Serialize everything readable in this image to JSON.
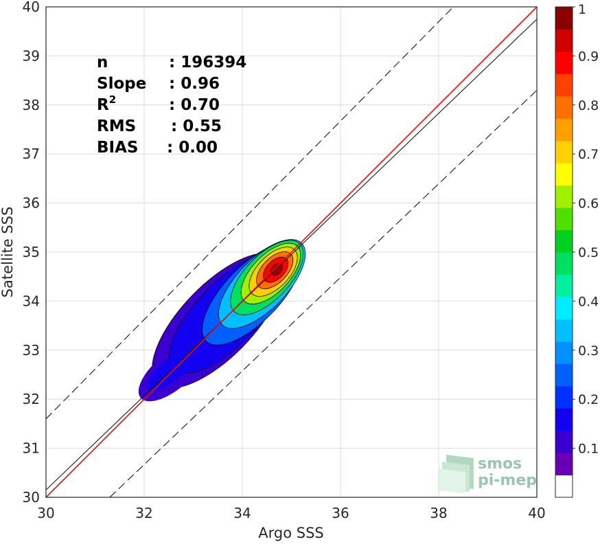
{
  "chart_data": {
    "type": "contour-density",
    "xlabel": "Argo SSS",
    "ylabel": "Satellite SSS",
    "xlim": [
      30,
      40
    ],
    "ylim": [
      30,
      40
    ],
    "xticks": [
      30,
      32,
      34,
      36,
      38,
      40
    ],
    "yticks": [
      30,
      31,
      32,
      33,
      34,
      35,
      36,
      37,
      38,
      39,
      40
    ],
    "grid": true,
    "stats": [
      {
        "key": "n",
        "value": ": 196394"
      },
      {
        "key": "Slope",
        "value": ": 0.96"
      },
      {
        "key": "R",
        "sup": "2",
        "value": ": 0.70"
      },
      {
        "key": "RMS",
        "value": ": 0.55"
      },
      {
        "key": "BIAS",
        "value": ": 0.00"
      }
    ],
    "lines": {
      "identity": {
        "x": [
          30,
          40
        ],
        "y": [
          30,
          40
        ],
        "color": "#ff0000"
      },
      "fit": {
        "x": [
          30,
          40
        ],
        "y": [
          30.15,
          39.75
        ],
        "color": "#000000"
      },
      "upper_bound": {
        "x": [
          30,
          38.3
        ],
        "y": [
          31.6,
          40
        ],
        "color": "#000000",
        "dash": true
      },
      "lower_bound": {
        "x": [
          31.3,
          40
        ],
        "y": [
          30,
          38.3
        ],
        "color": "#000000",
        "dash": true
      }
    },
    "density_peak": {
      "x": 34.7,
      "y": 34.65
    },
    "colorbar": {
      "min": 0,
      "max": 1,
      "ticks": [
        0.1,
        0.2,
        0.3,
        0.4,
        0.5,
        0.6,
        0.7,
        0.8,
        0.9,
        1
      ],
      "tick_labels": [
        "0.1",
        "0.2",
        "0.3",
        "0.4",
        "0.5",
        "0.6",
        "0.7",
        "0.8",
        "0.9",
        "1"
      ],
      "colors": [
        "#ffffff",
        "#6a00b5",
        "#3a00d0",
        "#1400f0",
        "#0030ff",
        "#0060ff",
        "#0090ff",
        "#00c0ff",
        "#00ecff",
        "#00f0a0",
        "#00e060",
        "#00d020",
        "#50e000",
        "#a0f000",
        "#ffff00",
        "#ffd000",
        "#ffa000",
        "#ff7000",
        "#ff4000",
        "#ff0000",
        "#d00000",
        "#8b0000"
      ]
    },
    "contour_levels": [
      {
        "level": 0.05,
        "color": "#3a00d0",
        "cx": 33.5,
        "cy": 33.6,
        "rx": 1.25,
        "ry": 0.52
      },
      {
        "level": 0.15,
        "color": "#1400f0",
        "cx": 33.7,
        "cy": 33.75,
        "rx": 1.12,
        "ry": 0.45
      },
      {
        "level": 0.25,
        "color": "#0060ff",
        "cx": 34.2,
        "cy": 34.15,
        "rx": 0.95,
        "ry": 0.4
      },
      {
        "level": 0.35,
        "color": "#00c0ff",
        "cx": 34.4,
        "cy": 34.35,
        "rx": 0.82,
        "ry": 0.36
      },
      {
        "level": 0.45,
        "color": "#00e060",
        "cx": 34.5,
        "cy": 34.48,
        "rx": 0.68,
        "ry": 0.32
      },
      {
        "level": 0.55,
        "color": "#a0f000",
        "cx": 34.58,
        "cy": 34.56,
        "rx": 0.55,
        "ry": 0.27
      },
      {
        "level": 0.65,
        "color": "#ffd000",
        "cx": 34.63,
        "cy": 34.6,
        "rx": 0.44,
        "ry": 0.23
      },
      {
        "level": 0.75,
        "color": "#ff7000",
        "cx": 34.66,
        "cy": 34.63,
        "rx": 0.33,
        "ry": 0.18
      },
      {
        "level": 0.85,
        "color": "#ff0000",
        "cx": 34.68,
        "cy": 34.64,
        "rx": 0.22,
        "ry": 0.13
      },
      {
        "level": 0.95,
        "color": "#a00000",
        "cx": 34.7,
        "cy": 34.65,
        "rx": 0.1,
        "ry": 0.07
      }
    ],
    "watermark": {
      "line1": "smos",
      "line2": "pi-mep"
    }
  }
}
